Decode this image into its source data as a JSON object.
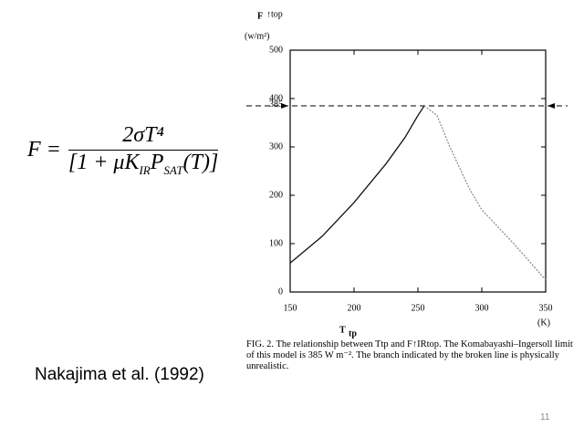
{
  "formula": {
    "lhs": "F =",
    "numerator": "2σT⁴",
    "denominator": [
      "[1 + μK",
      "IR",
      "P",
      "SAT",
      "(T)]"
    ]
  },
  "citation": "Nakajima et al. (1992)",
  "page_number": "11",
  "caption": "FIG. 2. The relationship between Ttp and F↑IRtop. The Komabayashi–Ingersoll limit of this model is 385 W m⁻². The branch indicated by the broken line is physically unrealistic.",
  "chart_data": {
    "type": "line",
    "ylabel": "F",
    "ylabel_sub": "↑top",
    "ylabel_units": "(w/m²)",
    "xlabel": "T",
    "xlabel_sub": "tp",
    "xlabel_units": "(K)",
    "xlim": [
      150,
      350
    ],
    "xticks": [
      150,
      200,
      250,
      300,
      350
    ],
    "ylim": [
      0,
      500
    ],
    "yticks": [
      0,
      100,
      200,
      300,
      400,
      500
    ],
    "hline": 385,
    "series": [
      {
        "color": "#111111",
        "style": "solid",
        "x": [
          150,
          175,
          200,
          225,
          240,
          250,
          255
        ],
        "values": [
          60,
          115,
          185,
          265,
          320,
          365,
          385
        ]
      },
      {
        "color": "#888888",
        "style": "dotted",
        "x": [
          255,
          265,
          275,
          290,
          300,
          325,
          350
        ],
        "values": [
          385,
          365,
          300,
          215,
          170,
          100,
          25
        ]
      }
    ]
  }
}
